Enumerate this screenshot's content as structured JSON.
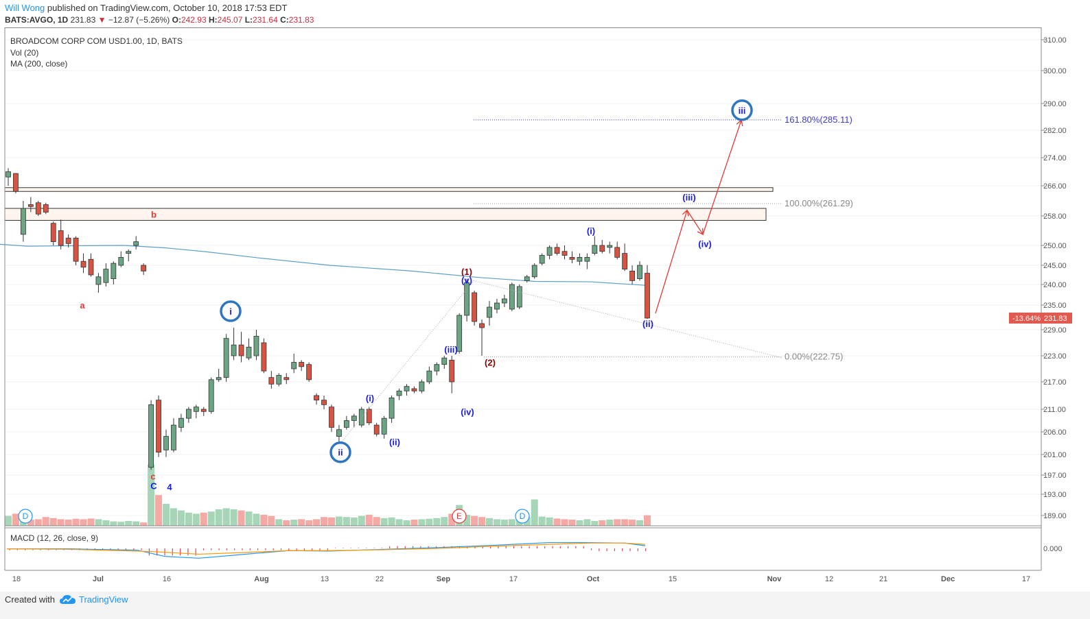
{
  "header": {
    "author": "Will Wong",
    "published": "published on TradingView.com, October 10, 2018 17:53 EDT",
    "symbol": "BATS:AVGO, 1D",
    "last": "231.83",
    "change": "−12.87 (−5.26%)",
    "open_label": "O:",
    "open": "242.93",
    "high_label": "H:",
    "high": "245.07",
    "low_label": "L:",
    "low": "231.64",
    "close_label": "C:",
    "close": "231.83"
  },
  "legend": {
    "title": "BROADCOM CORP COM USD1.00, 1D, BATS",
    "vol": "Vol (20)",
    "ma": "MA (200, close)",
    "macd": "MACD (12, 26, close, 9)"
  },
  "footer": {
    "created": "Created with",
    "brand": "TradingView"
  },
  "colors": {
    "up": "#6ba583",
    "down": "#d75442",
    "ma": "#5a9fc5",
    "macd": "#2196f3",
    "signal": "#ff9800",
    "wave_blue": "#1a1ae6",
    "wave_red": "#cc0000",
    "circle": "#2f76c0"
  },
  "chart_data": {
    "type": "candlestick",
    "interval": "1D",
    "price_axis": {
      "ticks": [
        "310.00",
        "300.00",
        "290.00",
        "282.00",
        "274.00",
        "266.00",
        "258.00",
        "250.00",
        "245.00",
        "240.00",
        "235.00",
        "229.00",
        "223.00",
        "217.00",
        "211.00",
        "206.00",
        "201.00",
        "197.00",
        "193.00",
        "189.00"
      ],
      "ylim": [
        186,
        313
      ]
    },
    "macd_axis": {
      "ticks": [
        "0.000"
      ]
    },
    "time_axis": {
      "labels": [
        "18",
        "Jul",
        "16",
        "Aug",
        "13",
        "22",
        "Sep",
        "17",
        "Oct",
        "15",
        "Nov",
        "12",
        "21",
        "Dec",
        "17"
      ]
    },
    "last_price_tag": {
      "pct": "-13.64%",
      "value": "231.83"
    },
    "candles": [
      {
        "o": 268.5,
        "h": 271.0,
        "l": 266.0,
        "c": 270.0
      },
      {
        "o": 269.5,
        "h": 269.6,
        "l": 264.0,
        "c": 264.5
      },
      {
        "o": 253.0,
        "h": 262.0,
        "l": 251.0,
        "c": 260.0
      },
      {
        "o": 261.0,
        "h": 263.0,
        "l": 259.0,
        "c": 260.5
      },
      {
        "o": 261.5,
        "h": 262.0,
        "l": 258.0,
        "c": 258.5
      },
      {
        "o": 261.0,
        "h": 261.5,
        "l": 258.5,
        "c": 259.0
      },
      {
        "o": 256.0,
        "h": 256.5,
        "l": 250.0,
        "c": 251.0
      },
      {
        "o": 254.0,
        "h": 257.0,
        "l": 249.0,
        "c": 250.0
      },
      {
        "o": 252.0,
        "h": 253.0,
        "l": 249.5,
        "c": 250.5
      },
      {
        "o": 252.0,
        "h": 252.5,
        "l": 245.0,
        "c": 246.0
      },
      {
        "o": 246.0,
        "h": 248.0,
        "l": 243.0,
        "c": 244.5
      },
      {
        "o": 246.5,
        "h": 248.0,
        "l": 242.0,
        "c": 242.5
      },
      {
        "o": 240.0,
        "h": 243.0,
        "l": 238.0,
        "c": 242.0
      },
      {
        "o": 240.5,
        "h": 245.5,
        "l": 239.5,
        "c": 244.0
      },
      {
        "o": 241.5,
        "h": 246.0,
        "l": 240.0,
        "c": 245.5
      },
      {
        "o": 245.0,
        "h": 248.5,
        "l": 244.5,
        "c": 247.0
      },
      {
        "o": 248.0,
        "h": 249.0,
        "l": 246.0,
        "c": 248.5
      },
      {
        "o": 250.0,
        "h": 252.5,
        "l": 249.0,
        "c": 251.0
      },
      {
        "o": 245.0,
        "h": 245.5,
        "l": 242.5,
        "c": 243.5
      },
      {
        "o": 198.5,
        "h": 213.0,
        "l": 198.0,
        "c": 212.0
      },
      {
        "o": 213.0,
        "h": 214.0,
        "l": 200.5,
        "c": 201.5
      },
      {
        "o": 202.0,
        "h": 206.5,
        "l": 200.5,
        "c": 205.0
      },
      {
        "o": 202.0,
        "h": 209.0,
        "l": 201.5,
        "c": 207.5
      },
      {
        "o": 207.0,
        "h": 210.0,
        "l": 206.0,
        "c": 209.0
      },
      {
        "o": 209.0,
        "h": 211.5,
        "l": 208.0,
        "c": 211.0
      },
      {
        "o": 210.5,
        "h": 212.0,
        "l": 209.0,
        "c": 211.5
      },
      {
        "o": 211.0,
        "h": 211.5,
        "l": 209.5,
        "c": 210.5
      },
      {
        "o": 210.5,
        "h": 218.0,
        "l": 210.0,
        "c": 217.5
      },
      {
        "o": 217.5,
        "h": 220.0,
        "l": 217.0,
        "c": 218.0
      },
      {
        "o": 218.0,
        "h": 228.0,
        "l": 217.0,
        "c": 227.0
      },
      {
        "o": 223.0,
        "h": 229.5,
        "l": 222.0,
        "c": 225.5
      },
      {
        "o": 225.5,
        "h": 228.5,
        "l": 221.5,
        "c": 223.0
      },
      {
        "o": 222.5,
        "h": 227.0,
        "l": 222.0,
        "c": 225.0
      },
      {
        "o": 223.0,
        "h": 229.0,
        "l": 222.0,
        "c": 227.5
      },
      {
        "o": 226.0,
        "h": 227.0,
        "l": 219.0,
        "c": 219.5
      },
      {
        "o": 218.0,
        "h": 219.5,
        "l": 215.5,
        "c": 216.5
      },
      {
        "o": 216.5,
        "h": 219.0,
        "l": 216.0,
        "c": 218.5
      },
      {
        "o": 218.0,
        "h": 219.0,
        "l": 216.5,
        "c": 217.5
      },
      {
        "o": 220.0,
        "h": 223.5,
        "l": 219.0,
        "c": 221.5
      },
      {
        "o": 221.5,
        "h": 222.0,
        "l": 219.5,
        "c": 220.5
      },
      {
        "o": 221.0,
        "h": 221.5,
        "l": 217.0,
        "c": 217.5
      },
      {
        "o": 214.0,
        "h": 214.5,
        "l": 212.0,
        "c": 213.0
      },
      {
        "o": 213.0,
        "h": 214.0,
        "l": 211.0,
        "c": 212.0
      },
      {
        "o": 211.5,
        "h": 212.0,
        "l": 206.0,
        "c": 207.0
      },
      {
        "o": 205.0,
        "h": 207.5,
        "l": 203.5,
        "c": 206.5
      },
      {
        "o": 207.0,
        "h": 209.5,
        "l": 206.5,
        "c": 208.5
      },
      {
        "o": 208.5,
        "h": 210.0,
        "l": 207.0,
        "c": 209.5
      },
      {
        "o": 207.5,
        "h": 211.5,
        "l": 207.0,
        "c": 211.0
      },
      {
        "o": 211.0,
        "h": 211.5,
        "l": 207.5,
        "c": 208.0
      },
      {
        "o": 207.5,
        "h": 208.0,
        "l": 205.0,
        "c": 205.5
      },
      {
        "o": 205.5,
        "h": 209.5,
        "l": 204.5,
        "c": 209.0
      },
      {
        "o": 209.0,
        "h": 214.0,
        "l": 208.0,
        "c": 213.5
      },
      {
        "o": 214.0,
        "h": 215.5,
        "l": 213.0,
        "c": 215.0
      },
      {
        "o": 215.0,
        "h": 216.5,
        "l": 214.0,
        "c": 216.0
      },
      {
        "o": 215.5,
        "h": 216.0,
        "l": 214.5,
        "c": 215.0
      },
      {
        "o": 215.0,
        "h": 217.5,
        "l": 214.5,
        "c": 217.0
      },
      {
        "o": 217.0,
        "h": 220.5,
        "l": 216.5,
        "c": 219.5
      },
      {
        "o": 219.5,
        "h": 221.5,
        "l": 218.5,
        "c": 221.0
      },
      {
        "o": 221.0,
        "h": 223.0,
        "l": 220.0,
        "c": 222.5
      },
      {
        "o": 222.0,
        "h": 223.0,
        "l": 214.5,
        "c": 217.0
      },
      {
        "o": 224.0,
        "h": 233.0,
        "l": 223.5,
        "c": 232.5
      },
      {
        "o": 232.5,
        "h": 241.5,
        "l": 231.0,
        "c": 240.5
      },
      {
        "o": 238.0,
        "h": 238.5,
        "l": 230.0,
        "c": 231.0
      },
      {
        "o": 230.5,
        "h": 231.5,
        "l": 223.0,
        "c": 229.5
      },
      {
        "o": 232.0,
        "h": 236.0,
        "l": 230.0,
        "c": 234.5
      },
      {
        "o": 234.0,
        "h": 236.5,
        "l": 233.0,
        "c": 235.5
      },
      {
        "o": 235.5,
        "h": 237.5,
        "l": 234.5,
        "c": 236.5
      },
      {
        "o": 234.0,
        "h": 240.5,
        "l": 233.5,
        "c": 240.0
      },
      {
        "o": 234.5,
        "h": 240.0,
        "l": 234.0,
        "c": 239.5
      },
      {
        "o": 241.0,
        "h": 242.5,
        "l": 240.5,
        "c": 242.0
      },
      {
        "o": 242.0,
        "h": 245.5,
        "l": 241.5,
        "c": 245.0
      },
      {
        "o": 245.5,
        "h": 248.0,
        "l": 245.0,
        "c": 247.5
      },
      {
        "o": 247.5,
        "h": 250.0,
        "l": 246.5,
        "c": 249.5
      },
      {
        "o": 249.5,
        "h": 250.5,
        "l": 247.5,
        "c": 248.0
      },
      {
        "o": 248.5,
        "h": 250.0,
        "l": 246.5,
        "c": 247.5
      },
      {
        "o": 247.0,
        "h": 248.5,
        "l": 245.5,
        "c": 246.5
      },
      {
        "o": 246.0,
        "h": 248.0,
        "l": 245.0,
        "c": 247.0
      },
      {
        "o": 246.0,
        "h": 248.0,
        "l": 244.0,
        "c": 247.0
      },
      {
        "o": 248.0,
        "h": 252.5,
        "l": 247.5,
        "c": 250.0
      },
      {
        "o": 250.0,
        "h": 251.5,
        "l": 248.0,
        "c": 248.5
      },
      {
        "o": 249.5,
        "h": 251.0,
        "l": 248.0,
        "c": 250.0
      },
      {
        "o": 249.5,
        "h": 251.0,
        "l": 246.5,
        "c": 247.0
      },
      {
        "o": 248.0,
        "h": 250.5,
        "l": 243.5,
        "c": 244.0
      },
      {
        "o": 243.5,
        "h": 245.0,
        "l": 240.0,
        "c": 241.0
      },
      {
        "o": 241.5,
        "h": 246.0,
        "l": 241.0,
        "c": 245.0
      },
      {
        "o": 242.93,
        "h": 245.07,
        "l": 231.64,
        "c": 231.83
      }
    ],
    "volume": [
      0.45,
      0.55,
      0.35,
      0.28,
      0.3,
      0.4,
      0.35,
      0.3,
      0.28,
      0.32,
      0.3,
      0.33,
      0.3,
      0.25,
      0.2,
      0.18,
      0.22,
      0.2,
      0.15,
      2.8,
      1.4,
      1.0,
      0.8,
      0.7,
      0.6,
      0.55,
      0.6,
      0.65,
      0.75,
      0.8,
      0.75,
      0.7,
      0.65,
      0.55,
      0.5,
      0.45,
      0.3,
      0.25,
      0.28,
      0.3,
      0.25,
      0.3,
      0.4,
      0.38,
      0.42,
      0.4,
      0.38,
      0.45,
      0.5,
      0.4,
      0.35,
      0.38,
      0.3,
      0.25,
      0.28,
      0.3,
      0.32,
      0.35,
      0.4,
      0.55,
      0.95,
      0.5,
      0.45,
      0.4,
      0.35,
      0.3,
      0.28,
      0.3,
      0.35,
      0.4,
      1.2,
      0.42,
      0.38,
      0.33,
      0.3,
      0.28,
      0.25,
      0.3,
      0.22,
      0.25,
      0.28,
      0.3,
      0.3,
      0.28,
      0.25,
      0.48
    ],
    "ma200": [
      [
        0,
        250.3
      ],
      [
        40,
        249.8
      ],
      [
        100,
        249.9
      ],
      [
        180,
        250.0
      ],
      [
        240,
        249.4
      ],
      [
        300,
        248.4
      ],
      [
        380,
        246.8
      ],
      [
        480,
        245.0
      ],
      [
        600,
        243.5
      ],
      [
        700,
        241.8
      ],
      [
        780,
        240.8
      ],
      [
        860,
        240.7
      ],
      [
        940,
        239.8
      ]
    ],
    "macd_line": [
      [
        10,
        -0.1
      ],
      [
        100,
        -0.1
      ],
      [
        200,
        -0.4
      ],
      [
        240,
        -1.8
      ],
      [
        290,
        -2.2
      ],
      [
        350,
        -1.4
      ],
      [
        420,
        -0.5
      ],
      [
        480,
        -0.6
      ],
      [
        560,
        -0.2
      ],
      [
        640,
        0.2
      ],
      [
        720,
        0.7
      ],
      [
        800,
        1.3
      ],
      [
        860,
        1.3
      ],
      [
        910,
        1.2
      ],
      [
        940,
        0.6
      ]
    ],
    "signal_line": [
      [
        10,
        -0.1
      ],
      [
        100,
        -0.2
      ],
      [
        220,
        -0.7
      ],
      [
        290,
        -1.3
      ],
      [
        360,
        -0.9
      ],
      [
        420,
        -0.5
      ],
      [
        480,
        -0.5
      ],
      [
        560,
        -0.3
      ],
      [
        640,
        0.0
      ],
      [
        720,
        0.5
      ],
      [
        800,
        0.9
      ],
      [
        860,
        1.2
      ],
      [
        910,
        1.2
      ],
      [
        940,
        0.9
      ]
    ],
    "fib": [
      {
        "level": "161.80%",
        "price": "285.11",
        "value": 285.11
      },
      {
        "level": "100.00%",
        "price": "261.29",
        "value": 261.29
      },
      {
        "level": "0.00%",
        "price": "222.75",
        "value": 222.75
      }
    ],
    "zones": [
      {
        "top": 265.5,
        "bottom": 264.5
      },
      {
        "top": 260.0,
        "bottom": 256.8
      }
    ],
    "wave_labels": [
      {
        "text": "b",
        "x": 224,
        "price": 258.5,
        "color": "red"
      },
      {
        "text": "a",
        "x": 120,
        "price": 235.0,
        "color": "red"
      },
      {
        "text": "c",
        "x": 223,
        "price": 196.8,
        "color": "red"
      },
      {
        "text": "C",
        "x": 224,
        "price": 194.8,
        "color": "blue"
      },
      {
        "text": "4",
        "x": 247,
        "price": 194.6,
        "color": "blue"
      },
      {
        "text": "(i)",
        "x": 539,
        "price": 213.5,
        "color": "blue"
      },
      {
        "text": "(ii)",
        "x": 575,
        "price": 203.8,
        "color": "blue"
      },
      {
        "text": "(iii)",
        "x": 657,
        "price": 224.5,
        "color": "blue"
      },
      {
        "text": "(iv)",
        "x": 681,
        "price": 210.5,
        "color": "blue"
      },
      {
        "text": "(v)",
        "x": 680,
        "price": 241.2,
        "color": "blue"
      },
      {
        "text": "(1)",
        "x": 680,
        "price": 243.4,
        "color": "darkred"
      },
      {
        "text": "(2)",
        "x": 714,
        "price": 221.5,
        "color": "darkred"
      },
      {
        "text": "(i)",
        "x": 861,
        "price": 254.0,
        "color": "blue"
      },
      {
        "text": "(ii)",
        "x": 944,
        "price": 230.5,
        "color": "blue"
      },
      {
        "text": "(iii)",
        "x": 1004,
        "price": 263.0,
        "color": "blue"
      },
      {
        "text": "(iv)",
        "x": 1027,
        "price": 250.5,
        "color": "blue"
      }
    ],
    "circle_labels": [
      {
        "text": "i",
        "x": 336,
        "price": 233.5
      },
      {
        "text": "ii",
        "x": 496,
        "price": 201.5
      },
      {
        "text": "iii",
        "x": 1081,
        "price": 288.0
      }
    ],
    "event_markers": [
      {
        "text": "D",
        "x": 37
      },
      {
        "text": "E",
        "x": 669
      },
      {
        "text": "D",
        "x": 761
      }
    ]
  }
}
